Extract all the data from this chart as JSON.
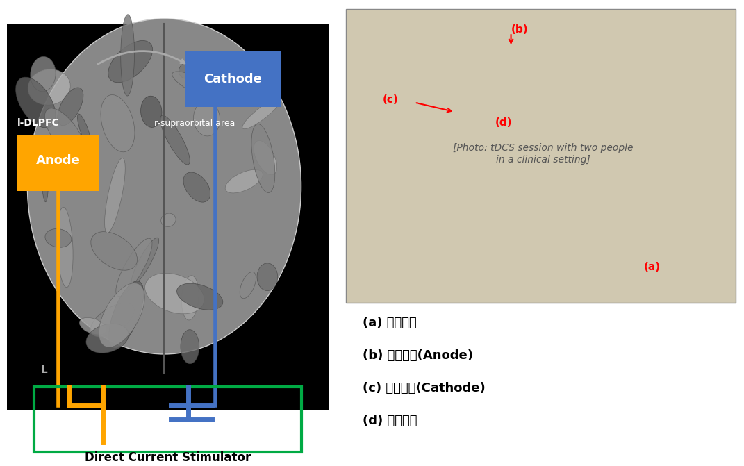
{
  "fig_width": 10.71,
  "fig_height": 6.71,
  "dpi": 100,
  "bg_color": "#ffffff",
  "left_panel": {
    "brain_bg": "#000000",
    "anode_box_color": "#FFA500",
    "anode_text": "Anode",
    "anode_text_color": "#ffffff",
    "cathode_box_color": "#4472C4",
    "cathode_text": "Cathode",
    "cathode_text_color": "#ffffff",
    "ldlpfc_label": "l-DLPFC",
    "rsupraorbital_label": "r-supraorbital area",
    "label_color": "#ffffff",
    "anode_wire_color": "#FFA500",
    "cathode_wire_color": "#4472C4",
    "stimulator_box_color": "#00AA44",
    "stimulator_label": "Direct Current Stimulator",
    "stimulator_label_color": "#000000",
    "arrow_color": "#aaaaaa"
  },
  "right_panel": {
    "labels": [
      "(a) 刺激装置",
      "(b) 陽極電極(Anode)",
      "(c) 陰極電極(Cathode)",
      "(d) 固定装置"
    ],
    "label_color": "#000000",
    "annotation_color": "#ff0000",
    "annotation_labels": [
      "(b)",
      "(c)",
      "(d)",
      "(a)"
    ]
  }
}
